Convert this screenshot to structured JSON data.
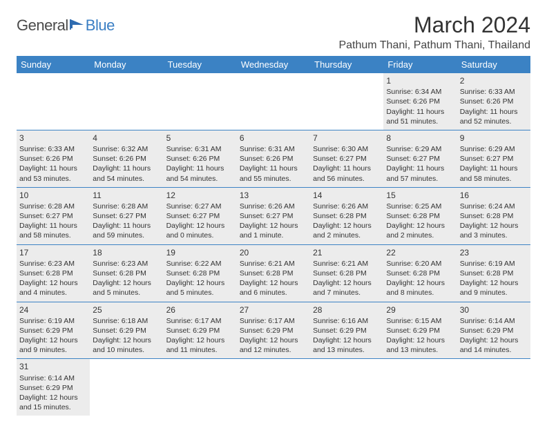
{
  "logo": {
    "part1": "General",
    "part2": "Blue"
  },
  "title": "March 2024",
  "location": "Pathum Thani, Pathum Thani, Thailand",
  "colors": {
    "header_bg": "#3b82c4",
    "header_text": "#ffffff",
    "cell_fill": "#ececec",
    "rule": "#3b82c4",
    "logo_gray": "#4a4a4a",
    "logo_blue": "#3b7fc4"
  },
  "weekdays": [
    "Sunday",
    "Monday",
    "Tuesday",
    "Wednesday",
    "Thursday",
    "Friday",
    "Saturday"
  ],
  "weeks": [
    [
      null,
      null,
      null,
      null,
      null,
      {
        "n": "1",
        "sunrise": "Sunrise: 6:34 AM",
        "sunset": "Sunset: 6:26 PM",
        "daylight": "Daylight: 11 hours and 51 minutes."
      },
      {
        "n": "2",
        "sunrise": "Sunrise: 6:33 AM",
        "sunset": "Sunset: 6:26 PM",
        "daylight": "Daylight: 11 hours and 52 minutes."
      }
    ],
    [
      {
        "n": "3",
        "sunrise": "Sunrise: 6:33 AM",
        "sunset": "Sunset: 6:26 PM",
        "daylight": "Daylight: 11 hours and 53 minutes."
      },
      {
        "n": "4",
        "sunrise": "Sunrise: 6:32 AM",
        "sunset": "Sunset: 6:26 PM",
        "daylight": "Daylight: 11 hours and 54 minutes."
      },
      {
        "n": "5",
        "sunrise": "Sunrise: 6:31 AM",
        "sunset": "Sunset: 6:26 PM",
        "daylight": "Daylight: 11 hours and 54 minutes."
      },
      {
        "n": "6",
        "sunrise": "Sunrise: 6:31 AM",
        "sunset": "Sunset: 6:26 PM",
        "daylight": "Daylight: 11 hours and 55 minutes."
      },
      {
        "n": "7",
        "sunrise": "Sunrise: 6:30 AM",
        "sunset": "Sunset: 6:27 PM",
        "daylight": "Daylight: 11 hours and 56 minutes."
      },
      {
        "n": "8",
        "sunrise": "Sunrise: 6:29 AM",
        "sunset": "Sunset: 6:27 PM",
        "daylight": "Daylight: 11 hours and 57 minutes."
      },
      {
        "n": "9",
        "sunrise": "Sunrise: 6:29 AM",
        "sunset": "Sunset: 6:27 PM",
        "daylight": "Daylight: 11 hours and 58 minutes."
      }
    ],
    [
      {
        "n": "10",
        "sunrise": "Sunrise: 6:28 AM",
        "sunset": "Sunset: 6:27 PM",
        "daylight": "Daylight: 11 hours and 58 minutes."
      },
      {
        "n": "11",
        "sunrise": "Sunrise: 6:28 AM",
        "sunset": "Sunset: 6:27 PM",
        "daylight": "Daylight: 11 hours and 59 minutes."
      },
      {
        "n": "12",
        "sunrise": "Sunrise: 6:27 AM",
        "sunset": "Sunset: 6:27 PM",
        "daylight": "Daylight: 12 hours and 0 minutes."
      },
      {
        "n": "13",
        "sunrise": "Sunrise: 6:26 AM",
        "sunset": "Sunset: 6:27 PM",
        "daylight": "Daylight: 12 hours and 1 minute."
      },
      {
        "n": "14",
        "sunrise": "Sunrise: 6:26 AM",
        "sunset": "Sunset: 6:28 PM",
        "daylight": "Daylight: 12 hours and 2 minutes."
      },
      {
        "n": "15",
        "sunrise": "Sunrise: 6:25 AM",
        "sunset": "Sunset: 6:28 PM",
        "daylight": "Daylight: 12 hours and 2 minutes."
      },
      {
        "n": "16",
        "sunrise": "Sunrise: 6:24 AM",
        "sunset": "Sunset: 6:28 PM",
        "daylight": "Daylight: 12 hours and 3 minutes."
      }
    ],
    [
      {
        "n": "17",
        "sunrise": "Sunrise: 6:23 AM",
        "sunset": "Sunset: 6:28 PM",
        "daylight": "Daylight: 12 hours and 4 minutes."
      },
      {
        "n": "18",
        "sunrise": "Sunrise: 6:23 AM",
        "sunset": "Sunset: 6:28 PM",
        "daylight": "Daylight: 12 hours and 5 minutes."
      },
      {
        "n": "19",
        "sunrise": "Sunrise: 6:22 AM",
        "sunset": "Sunset: 6:28 PM",
        "daylight": "Daylight: 12 hours and 5 minutes."
      },
      {
        "n": "20",
        "sunrise": "Sunrise: 6:21 AM",
        "sunset": "Sunset: 6:28 PM",
        "daylight": "Daylight: 12 hours and 6 minutes."
      },
      {
        "n": "21",
        "sunrise": "Sunrise: 6:21 AM",
        "sunset": "Sunset: 6:28 PM",
        "daylight": "Daylight: 12 hours and 7 minutes."
      },
      {
        "n": "22",
        "sunrise": "Sunrise: 6:20 AM",
        "sunset": "Sunset: 6:28 PM",
        "daylight": "Daylight: 12 hours and 8 minutes."
      },
      {
        "n": "23",
        "sunrise": "Sunrise: 6:19 AM",
        "sunset": "Sunset: 6:28 PM",
        "daylight": "Daylight: 12 hours and 9 minutes."
      }
    ],
    [
      {
        "n": "24",
        "sunrise": "Sunrise: 6:19 AM",
        "sunset": "Sunset: 6:29 PM",
        "daylight": "Daylight: 12 hours and 9 minutes."
      },
      {
        "n": "25",
        "sunrise": "Sunrise: 6:18 AM",
        "sunset": "Sunset: 6:29 PM",
        "daylight": "Daylight: 12 hours and 10 minutes."
      },
      {
        "n": "26",
        "sunrise": "Sunrise: 6:17 AM",
        "sunset": "Sunset: 6:29 PM",
        "daylight": "Daylight: 12 hours and 11 minutes."
      },
      {
        "n": "27",
        "sunrise": "Sunrise: 6:17 AM",
        "sunset": "Sunset: 6:29 PM",
        "daylight": "Daylight: 12 hours and 12 minutes."
      },
      {
        "n": "28",
        "sunrise": "Sunrise: 6:16 AM",
        "sunset": "Sunset: 6:29 PM",
        "daylight": "Daylight: 12 hours and 13 minutes."
      },
      {
        "n": "29",
        "sunrise": "Sunrise: 6:15 AM",
        "sunset": "Sunset: 6:29 PM",
        "daylight": "Daylight: 12 hours and 13 minutes."
      },
      {
        "n": "30",
        "sunrise": "Sunrise: 6:14 AM",
        "sunset": "Sunset: 6:29 PM",
        "daylight": "Daylight: 12 hours and 14 minutes."
      }
    ],
    [
      {
        "n": "31",
        "sunrise": "Sunrise: 6:14 AM",
        "sunset": "Sunset: 6:29 PM",
        "daylight": "Daylight: 12 hours and 15 minutes."
      },
      null,
      null,
      null,
      null,
      null,
      null
    ]
  ]
}
